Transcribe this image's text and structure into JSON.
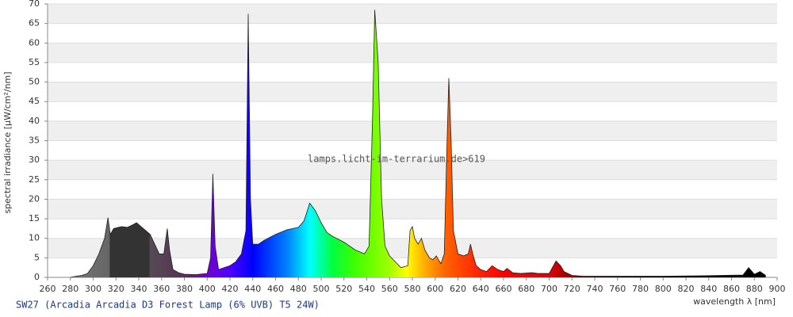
{
  "chart_data": {
    "type": "area",
    "y_label": "spectral irradiance [µW/cm²/nm]",
    "x_label": "wavelength λ [nm]",
    "watermark": "lamps.licht-im-terrarium.de>619",
    "caption": "SW27 (Arcadia Arcadia D3 Forest Lamp (6% UVB) T5 24W)",
    "xlim": [
      260,
      900
    ],
    "ylim": [
      0,
      70
    ],
    "xticks": [
      260,
      280,
      300,
      320,
      340,
      360,
      380,
      400,
      420,
      440,
      460,
      480,
      500,
      520,
      540,
      560,
      580,
      600,
      620,
      640,
      660,
      680,
      700,
      720,
      740,
      760,
      780,
      800,
      820,
      840,
      860,
      880,
      900
    ],
    "yticks": [
      0,
      5,
      10,
      15,
      20,
      25,
      30,
      35,
      40,
      45,
      50,
      55,
      60,
      65,
      70
    ],
    "grid": true,
    "gradient": [
      {
        "x": 280,
        "color": "#777777"
      },
      {
        "x": 314,
        "color": "#666666"
      },
      {
        "x": 315,
        "color": "#333333"
      },
      {
        "x": 349,
        "color": "#333333"
      },
      {
        "x": 350,
        "color": "#554a55"
      },
      {
        "x": 380,
        "color": "#553355"
      },
      {
        "x": 400,
        "color": "#7000d0"
      },
      {
        "x": 420,
        "color": "#5000ff"
      },
      {
        "x": 440,
        "color": "#0000ff"
      },
      {
        "x": 470,
        "color": "#0080ff"
      },
      {
        "x": 490,
        "color": "#00ffff"
      },
      {
        "x": 510,
        "color": "#00ff40"
      },
      {
        "x": 530,
        "color": "#40ff00"
      },
      {
        "x": 560,
        "color": "#a0ff00"
      },
      {
        "x": 575,
        "color": "#ffff00"
      },
      {
        "x": 590,
        "color": "#ffb000"
      },
      {
        "x": 610,
        "color": "#ff6000"
      },
      {
        "x": 640,
        "color": "#ff2000"
      },
      {
        "x": 660,
        "color": "#ff0000"
      },
      {
        "x": 700,
        "color": "#e00000"
      },
      {
        "x": 720,
        "color": "#900000"
      },
      {
        "x": 780,
        "color": "#000000"
      }
    ],
    "x": [
      280,
      285,
      290,
      295,
      300,
      305,
      310,
      313,
      315,
      318,
      325,
      330,
      335,
      338,
      342,
      346,
      350,
      354,
      358,
      362,
      365,
      367,
      370,
      375,
      380,
      390,
      400,
      403,
      405,
      407,
      410,
      415,
      420,
      425,
      430,
      434,
      436,
      438,
      440,
      445,
      450,
      460,
      470,
      480,
      485,
      490,
      495,
      500,
      505,
      510,
      520,
      530,
      538,
      542,
      545,
      547,
      550,
      553,
      556,
      560,
      570,
      576,
      578,
      580,
      582,
      585,
      588,
      591,
      595,
      598,
      601,
      605,
      608,
      610,
      612,
      614,
      616,
      620,
      625,
      629,
      631,
      633,
      636,
      640,
      645,
      650,
      655,
      660,
      663,
      668,
      675,
      685,
      690,
      700,
      706,
      710,
      713,
      720,
      730,
      750,
      780,
      800,
      830,
      850,
      870,
      875,
      880,
      885,
      890
    ],
    "values": [
      0,
      0.3,
      0.5,
      1,
      3,
      6,
      10,
      15.3,
      11,
      12.5,
      13,
      12.8,
      13.5,
      14,
      13,
      12,
      11,
      8.5,
      6,
      6,
      12.5,
      7,
      2,
      1.2,
      0.8,
      0.7,
      1,
      5,
      26.5,
      8,
      2,
      2.5,
      3,
      4,
      6,
      12,
      67.5,
      20,
      8.5,
      8.5,
      9.5,
      11,
      12.2,
      12.8,
      14.5,
      19,
      17,
      14,
      11.5,
      10.5,
      9,
      7,
      6,
      8,
      40,
      68.5,
      55,
      20,
      8,
      5.5,
      2.5,
      3,
      12,
      13,
      10,
      8.5,
      10,
      7,
      5,
      4.5,
      5.5,
      3.5,
      6,
      30,
      51,
      35,
      12,
      6,
      5.5,
      6,
      8.5,
      6,
      3,
      2,
      1.5,
      3,
      2,
      1.5,
      2.3,
      1.2,
      1,
      1.2,
      1,
      1,
      4.2,
      3,
      1.5,
      0.5,
      0.3,
      0.3,
      0.3,
      0.3,
      0.4,
      0.5,
      0.6,
      2.5,
      0.8,
      1.5,
      0.5
    ]
  }
}
